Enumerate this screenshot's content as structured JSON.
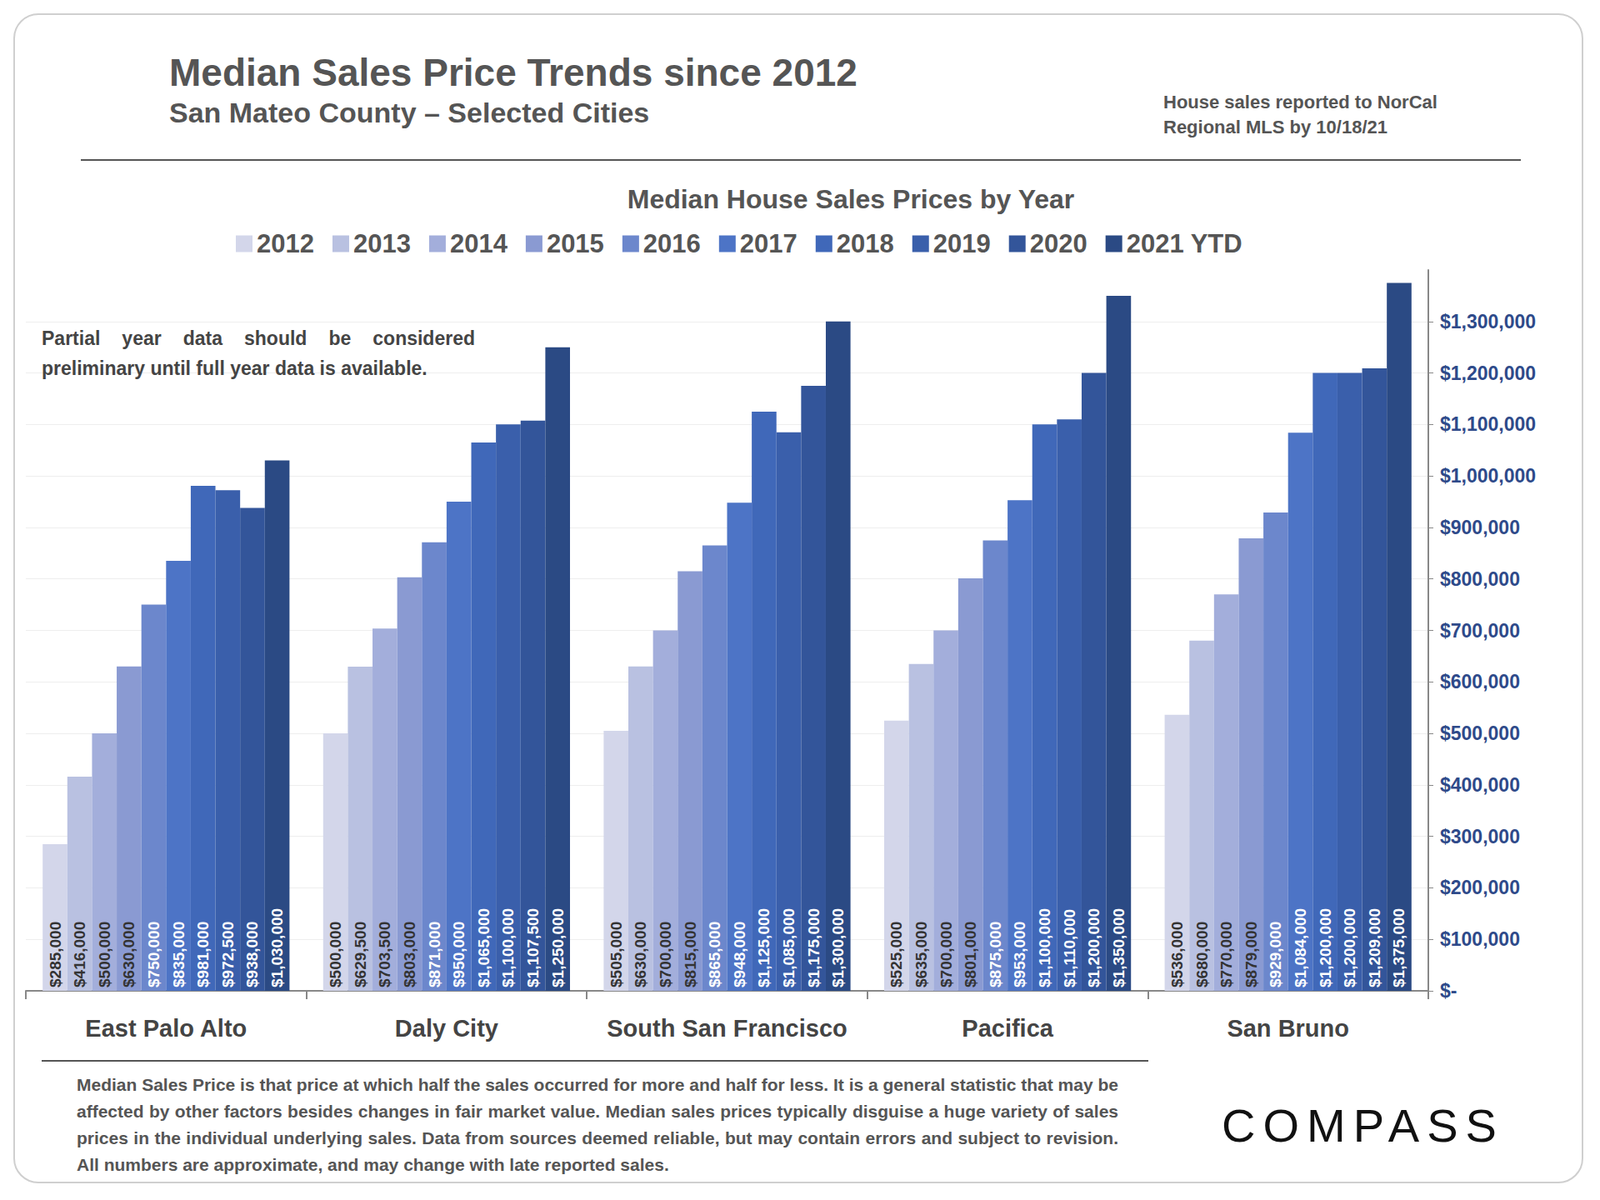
{
  "chart_data": {
    "type": "bar",
    "title": "Median Sales Price Trends since 2012",
    "subtitle": "San Mateo County – Selected Cities",
    "source": "House sales reported to NorCal Regional MLS by 10/18/21",
    "chart_title": "Median House Sales Prices by Year",
    "annotation": "Partial year data should be considered preliminary until full year data is available.",
    "footnote": "Median Sales Price is that price at which half the sales occurred for more and half for less. It is a general statistic that may be affected by other factors besides changes in fair market value. Median sales prices typically disguise a huge variety of sales prices in the individual underlying sales. Data from sources deemed reliable, but may contain errors and subject to revision.  All numbers are approximate, and may change with late reported sales.",
    "logo": "COMPASS",
    "categories": [
      "East Palo Alto",
      "Daly City",
      "South San Francisco",
      "Pacifica",
      "San Bruno"
    ],
    "series": [
      {
        "name": "2012",
        "color": "#d3d6ea",
        "values": [
          285000,
          500000,
          505000,
          525000,
          536000
        ],
        "value_labels": [
          "$285,000",
          "$500,000",
          "$505,000",
          "$525,000",
          "$536,000"
        ]
      },
      {
        "name": "2013",
        "color": "#b9c1e1",
        "values": [
          416000,
          629500,
          630000,
          635000,
          680000
        ],
        "value_labels": [
          "$416,000",
          "$629,500",
          "$630,000",
          "$635,000",
          "$680,000"
        ]
      },
      {
        "name": "2014",
        "color": "#a3aedb",
        "values": [
          500000,
          703500,
          700000,
          700000,
          770000
        ],
        "value_labels": [
          "$500,000",
          "$703,500",
          "$700,000",
          "$700,000",
          "$770,000"
        ]
      },
      {
        "name": "2015",
        "color": "#8a9ad2",
        "values": [
          630000,
          803000,
          815000,
          801000,
          879000
        ],
        "value_labels": [
          "$630,000",
          "$803,000",
          "$815,000",
          "$801,000",
          "$879,000"
        ]
      },
      {
        "name": "2016",
        "color": "#6c87cc",
        "values": [
          750000,
          871000,
          865000,
          875000,
          929000
        ],
        "value_labels": [
          "$750,000",
          "$871,000",
          "$865,000",
          "$875,000",
          "$929,000"
        ]
      },
      {
        "name": "2017",
        "color": "#4d74c6",
        "values": [
          835000,
          950000,
          948000,
          953000,
          1084000
        ],
        "value_labels": [
          "$835,000",
          "$950,000",
          "$948,000",
          "$953,000",
          "$1,084,000"
        ]
      },
      {
        "name": "2018",
        "color": "#4068b9",
        "values": [
          981000,
          1065000,
          1125000,
          1100000,
          1200000
        ],
        "value_labels": [
          "$981,000",
          "$1,065,000",
          "$1,125,000",
          "$1,100,000",
          "$1,200,000"
        ]
      },
      {
        "name": "2019",
        "color": "#3a5fab",
        "values": [
          972500,
          1100000,
          1085000,
          1110000,
          1200000
        ],
        "value_labels": [
          "$972,500",
          "$1,100,000",
          "$1,085,000",
          "$1,110,000",
          "$1,200,000"
        ]
      },
      {
        "name": "2020",
        "color": "#33559a",
        "values": [
          938000,
          1107500,
          1175000,
          1200000,
          1209000
        ],
        "value_labels": [
          "$938,000",
          "$1,107,500",
          "$1,175,000",
          "$1,200,000",
          "$1,209,000"
        ]
      },
      {
        "name": "2021 YTD",
        "color": "#2b4a84",
        "values": [
          1030000,
          1250000,
          1300000,
          1350000,
          1375000
        ],
        "value_labels": [
          "$1,030,000",
          "$1,250,000",
          "$1,300,000",
          "$1,350,000",
          "$1,375,000"
        ]
      }
    ],
    "ylim": [
      0,
      1400000
    ],
    "yticks": [
      {
        "value": 0,
        "label": "$-"
      },
      {
        "value": 100000,
        "label": "$100,000"
      },
      {
        "value": 200000,
        "label": "$200,000"
      },
      {
        "value": 300000,
        "label": "$300,000"
      },
      {
        "value": 400000,
        "label": "$400,000"
      },
      {
        "value": 500000,
        "label": "$500,000"
      },
      {
        "value": 600000,
        "label": "$600,000"
      },
      {
        "value": 700000,
        "label": "$700,000"
      },
      {
        "value": 800000,
        "label": "$800,000"
      },
      {
        "value": 900000,
        "label": "$900,000"
      },
      {
        "value": 1000000,
        "label": "$1,000,000"
      },
      {
        "value": 1100000,
        "label": "$1,100,000"
      },
      {
        "value": 1200000,
        "label": "$1,200,000"
      },
      {
        "value": 1300000,
        "label": "$1,300,000"
      }
    ],
    "grid": true,
    "legend": "top",
    "data_labels": true
  }
}
